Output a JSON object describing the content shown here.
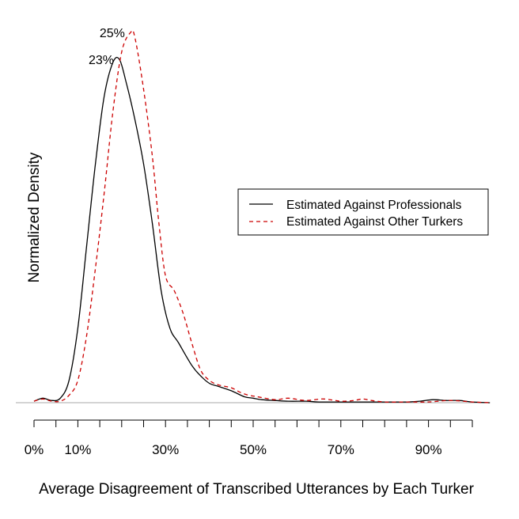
{
  "chart_data": {
    "type": "line",
    "title": "",
    "xlabel": "Average Disagreement of Transcribed Utterances by Each Turker",
    "ylabel": "Normalized Density",
    "x_ticks": [
      0,
      5,
      10,
      15,
      20,
      25,
      30,
      35,
      40,
      45,
      50,
      55,
      60,
      65,
      70,
      75,
      80,
      85,
      90,
      95,
      100
    ],
    "x_tick_labels": [
      {
        "x": 0,
        "label": "0%"
      },
      {
        "x": 10,
        "label": "10%"
      },
      {
        "x": 30,
        "label": "30%"
      },
      {
        "x": 50,
        "label": "50%"
      },
      {
        "x": 70,
        "label": "70%"
      },
      {
        "x": 90,
        "label": "90%"
      }
    ],
    "xlim": [
      0,
      104
    ],
    "ylim": [
      0,
      25.5
    ],
    "grid": false,
    "legend": "right",
    "series": [
      {
        "name": "Estimated Against Professionals",
        "color": "#000000",
        "dash": "solid",
        "points": [
          [
            0,
            0.1
          ],
          [
            2,
            0.3
          ],
          [
            4,
            0.15
          ],
          [
            6,
            0.3
          ],
          [
            8,
            1.5
          ],
          [
            10,
            5.0
          ],
          [
            12,
            10.5
          ],
          [
            14,
            16.0
          ],
          [
            16,
            20.5
          ],
          [
            18,
            22.8
          ],
          [
            19.5,
            23.0
          ],
          [
            21,
            21.5
          ],
          [
            23,
            19.0
          ],
          [
            25,
            16.0
          ],
          [
            27,
            12.0
          ],
          [
            29,
            7.5
          ],
          [
            31,
            5.0
          ],
          [
            33,
            4.0
          ],
          [
            36,
            2.5
          ],
          [
            38,
            1.8
          ],
          [
            40,
            1.3
          ],
          [
            42,
            1.1
          ],
          [
            45,
            0.8
          ],
          [
            48,
            0.4
          ],
          [
            50,
            0.3
          ],
          [
            52,
            0.2
          ],
          [
            55,
            0.15
          ],
          [
            58,
            0.1
          ],
          [
            62,
            0.1
          ],
          [
            65,
            0.05
          ],
          [
            70,
            0.05
          ],
          [
            75,
            0.05
          ],
          [
            80,
            0.05
          ],
          [
            85,
            0.05
          ],
          [
            88,
            0.1
          ],
          [
            91,
            0.2
          ],
          [
            94,
            0.15
          ],
          [
            97,
            0.15
          ],
          [
            100,
            0.05
          ],
          [
            104,
            0.0
          ]
        ],
        "peak_label": "23%"
      },
      {
        "name": "Estimated Against Other Turkers",
        "color": "#cc0000",
        "dash": "dashed",
        "points": [
          [
            0,
            0.1
          ],
          [
            2,
            0.25
          ],
          [
            4,
            0.1
          ],
          [
            6,
            0.1
          ],
          [
            8,
            0.5
          ],
          [
            10,
            1.5
          ],
          [
            12,
            4.5
          ],
          [
            14,
            9.0
          ],
          [
            16,
            14.0
          ],
          [
            18,
            19.5
          ],
          [
            20,
            23.5
          ],
          [
            22,
            24.8
          ],
          [
            23,
            24.5
          ],
          [
            25,
            21.0
          ],
          [
            27,
            16.5
          ],
          [
            28.5,
            12.0
          ],
          [
            30,
            8.5
          ],
          [
            32,
            7.5
          ],
          [
            34,
            6.0
          ],
          [
            36,
            4.0
          ],
          [
            38,
            2.2
          ],
          [
            40,
            1.5
          ],
          [
            42,
            1.2
          ],
          [
            45,
            1.0
          ],
          [
            47,
            0.7
          ],
          [
            49,
            0.5
          ],
          [
            51,
            0.4
          ],
          [
            55,
            0.2
          ],
          [
            58,
            0.3
          ],
          [
            62,
            0.15
          ],
          [
            66,
            0.25
          ],
          [
            70,
            0.1
          ],
          [
            73,
            0.15
          ],
          [
            75,
            0.25
          ],
          [
            77,
            0.15
          ],
          [
            80,
            0.05
          ],
          [
            85,
            0.05
          ],
          [
            90,
            0.05
          ],
          [
            95,
            0.15
          ],
          [
            100,
            0.05
          ],
          [
            104,
            0.0
          ]
        ],
        "peak_label": "25%"
      }
    ]
  }
}
